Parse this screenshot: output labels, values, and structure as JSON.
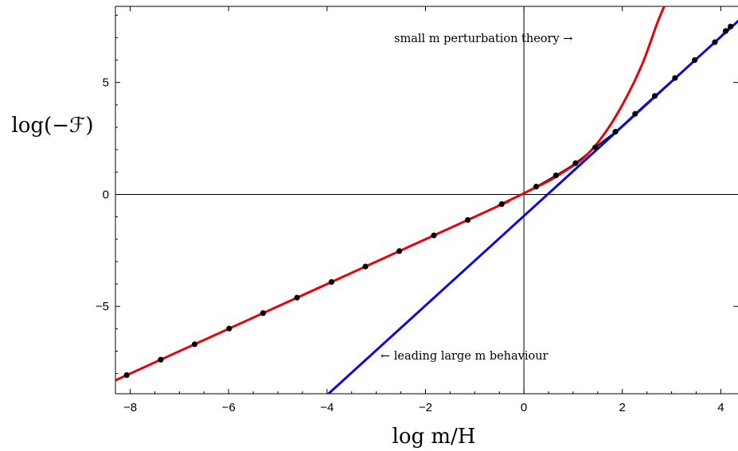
{
  "chart_data": {
    "type": "line",
    "xlabel": "log m/H",
    "ylabel": "log(−ℱ)",
    "xlim": [
      -8.3,
      4.35
    ],
    "ylim": [
      -8.9,
      8.4
    ],
    "xticks": [
      -8,
      -6,
      -4,
      -2,
      0,
      2,
      4
    ],
    "yticks": [
      -5,
      0,
      5
    ],
    "xtick_labels": [
      "−8",
      "−6",
      "−4",
      "−2",
      "0",
      "2",
      "4"
    ],
    "ytick_labels": [
      "−5",
      "0",
      "5"
    ],
    "grid": false,
    "legend": "none",
    "annotations": [
      {
        "text": "small m perturbation theory →",
        "x": 1.0,
        "y": 6.85
      },
      {
        "text": "← leading large m behaviour",
        "x": -0.9,
        "y": -7.2
      }
    ],
    "series": [
      {
        "role": "numerical data",
        "color": "#000000",
        "style": "points+line",
        "x": [
          -8.07,
          -7.38,
          -6.69,
          -5.99,
          -5.3,
          -4.61,
          -3.91,
          -3.22,
          -2.53,
          -1.83,
          -1.14,
          -0.45,
          0.25,
          0.65,
          1.05,
          1.45,
          1.86,
          2.26,
          2.66,
          3.07,
          3.47,
          3.88,
          4.1,
          4.2
        ],
        "y": [
          -8.07,
          -7.38,
          -6.69,
          -5.99,
          -5.3,
          -4.61,
          -3.91,
          -3.22,
          -2.53,
          -1.83,
          -1.14,
          -0.43,
          0.35,
          0.85,
          1.4,
          2.1,
          2.8,
          3.6,
          4.4,
          5.2,
          6.0,
          6.8,
          7.3,
          7.5
        ]
      },
      {
        "role": "small m perturbation theory",
        "color": "#e8000b",
        "x": [
          -8.3,
          -1.0,
          -0.5,
          0.0,
          0.5,
          0.8,
          1.2,
          1.6,
          2.0,
          2.4,
          2.7,
          2.85
        ],
        "y": [
          -8.3,
          -1.0,
          -0.48,
          0.05,
          0.6,
          1.0,
          1.6,
          2.6,
          4.0,
          5.8,
          7.6,
          8.4
        ]
      },
      {
        "role": "leading large m behaviour",
        "color": "#0a0ae0",
        "x": [
          -3.97,
          4.35
        ],
        "y": [
          -8.9,
          7.74
        ]
      }
    ]
  }
}
